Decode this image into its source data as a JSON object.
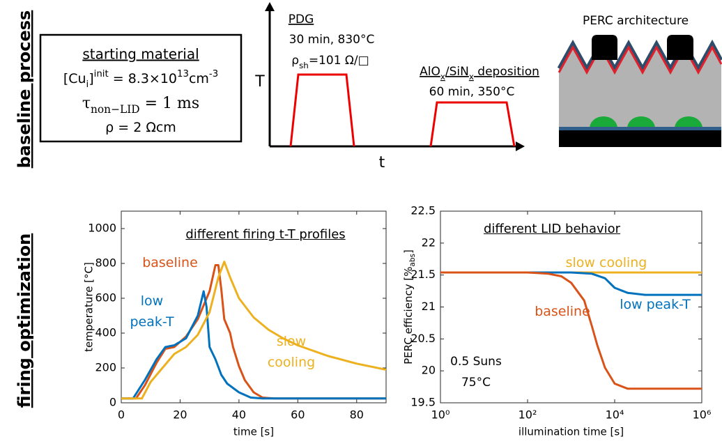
{
  "row_labels": [
    "baseline process",
    "firing optimization"
  ],
  "starting_material": {
    "title": "starting material",
    "lines": [
      [
        {
          "t": "[Cu"
        },
        {
          "t": "i",
          "sub": true
        },
        {
          "t": "]"
        },
        {
          "t": "init",
          "sup": true
        },
        {
          "t": " = 8.3×10"
        },
        {
          "t": "13",
          "sup": true
        },
        {
          "t": "cm"
        },
        {
          "t": "-3",
          "sup": true
        }
      ],
      [
        {
          "t": "τ"
        },
        {
          "t": "non−LID",
          "sub": true
        },
        {
          "t": " = 1 ms"
        }
      ],
      [
        {
          "t": "ρ = 2 Ωcm"
        }
      ]
    ]
  },
  "process": {
    "y_axis": "T",
    "x_axis": "t",
    "steps": [
      {
        "name": [
          {
            "t": "PDG"
          }
        ],
        "lines": [
          [
            {
              "t": "30 min, 830°C"
            }
          ],
          [
            {
              "t": "ρ"
            },
            {
              "t": "sh",
              "sub": true
            },
            {
              "t": "=101 Ω/□"
            }
          ]
        ]
      },
      {
        "name": [
          {
            "t": "AlO"
          },
          {
            "t": "x",
            "sub": true
          },
          {
            "t": "/SiN"
          },
          {
            "t": "x",
            "sub": true
          },
          {
            "t": " deposition"
          }
        ],
        "lines": [
          [
            {
              "t": "60 min, 350°C"
            }
          ]
        ]
      }
    ]
  },
  "perc": {
    "title": "PERC architecture"
  },
  "chart_data": [
    {
      "type": "line",
      "title": "different firing t-T profiles",
      "xlabel": "time [s]",
      "ylabel": "temperature [°C]",
      "xlim": [
        0,
        90
      ],
      "xticks": [
        0,
        20,
        40,
        60,
        80
      ],
      "ylim": [
        0,
        1100
      ],
      "yticks": [
        0,
        200,
        400,
        600,
        800,
        1000
      ],
      "series": [
        {
          "name": "baseline",
          "color": "#d95319",
          "x": [
            0,
            5,
            8,
            12,
            15,
            18,
            22,
            26,
            30,
            32,
            33,
            34,
            35,
            37,
            38,
            40,
            42,
            45,
            48,
            52,
            90
          ],
          "values": [
            25,
            25,
            100,
            230,
            310,
            320,
            380,
            480,
            640,
            790,
            790,
            650,
            480,
            400,
            320,
            210,
            130,
            60,
            30,
            25,
            25
          ]
        },
        {
          "name": "low peak-T",
          "color": "#0072bd",
          "x": [
            0,
            4,
            8,
            12,
            15,
            18,
            22,
            26,
            28,
            29,
            30,
            32,
            34,
            36,
            40,
            44,
            48,
            90
          ],
          "values": [
            25,
            25,
            130,
            250,
            320,
            330,
            370,
            500,
            640,
            550,
            320,
            250,
            160,
            110,
            60,
            30,
            25,
            25
          ]
        },
        {
          "name": "slow cooling",
          "color": "#edb120",
          "x": [
            0,
            7,
            10,
            14,
            18,
            22,
            26,
            30,
            33,
            35,
            37,
            40,
            45,
            50,
            55,
            60,
            70,
            80,
            90
          ],
          "values": [
            25,
            25,
            120,
            200,
            280,
            320,
            390,
            520,
            720,
            810,
            720,
            600,
            490,
            420,
            370,
            330,
            270,
            225,
            190
          ]
        }
      ]
    },
    {
      "type": "line",
      "title": "different LID behavior",
      "xlabel": "illumination time [s]",
      "ylabel": [
        {
          "t": "PERC efficiency [%"
        },
        {
          "t": "abs",
          "sub": true
        },
        {
          "t": "]"
        }
      ],
      "xscale": "log",
      "xlim": [
        1,
        1000000
      ],
      "xticks": [
        {
          "value": 1,
          "label": "10⁰"
        },
        {
          "value": 100,
          "label": "10²"
        },
        {
          "value": 10000,
          "label": "10⁴"
        },
        {
          "value": 1000000,
          "label": "10⁶"
        }
      ],
      "ylim": [
        19.5,
        22.5
      ],
      "yticks": [
        19.5,
        20,
        20.5,
        21,
        21.5,
        22,
        22.5
      ],
      "series": [
        {
          "name": "slow cooling",
          "color": "#edb120",
          "x": [
            1,
            1000000
          ],
          "values": [
            21.54,
            21.54
          ]
        },
        {
          "name": "low peak-T",
          "color": "#0072bd",
          "x": [
            1,
            1000,
            3000,
            6000,
            10000,
            20000,
            50000,
            1000000
          ],
          "values": [
            21.54,
            21.54,
            21.52,
            21.45,
            21.3,
            21.22,
            21.19,
            21.19
          ]
        },
        {
          "name": "baseline",
          "color": "#d95319",
          "x": [
            1,
            100,
            300,
            600,
            1000,
            2000,
            3000,
            4000,
            6000,
            10000,
            20000,
            1000000
          ],
          "values": [
            21.54,
            21.54,
            21.52,
            21.48,
            21.38,
            21.1,
            20.7,
            20.4,
            20.05,
            19.8,
            19.72,
            19.72
          ]
        }
      ],
      "annotations": [
        "0.5 Suns",
        "75°C"
      ]
    }
  ]
}
